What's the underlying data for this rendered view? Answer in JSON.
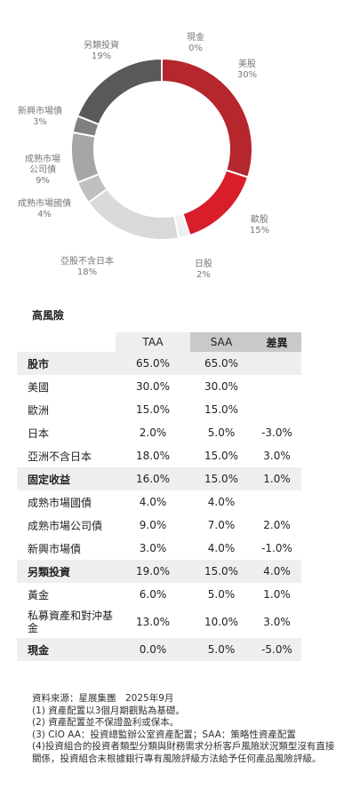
{
  "chart_data": {
    "type": "pie",
    "title": "",
    "slices": [
      {
        "label": "美股",
        "value": 30,
        "display": "30%",
        "color": "#b5272d"
      },
      {
        "label": "歐股",
        "value": 15,
        "display": "15%",
        "color": "#d71e29"
      },
      {
        "label": "日股",
        "value": 2,
        "display": "2%",
        "color": "#f0f0f0"
      },
      {
        "label": "亞股不含日本",
        "value": 18,
        "display": "18%",
        "color": "#d9d9d9"
      },
      {
        "label": "成熟市場國債",
        "value": 4,
        "display": "4%",
        "color": "#bfbfbf"
      },
      {
        "label": "成熟市場公司債",
        "value": 9,
        "display": "9%",
        "color": "#a6a6a6"
      },
      {
        "label": "新興市場債",
        "value": 3,
        "display": "3%",
        "color": "#808080"
      },
      {
        "label": "另類投資",
        "value": 19,
        "display": "19%",
        "color": "#595959"
      },
      {
        "label": "現金",
        "value": 0,
        "display": "0%",
        "color": "#404040"
      }
    ],
    "display_labels": [
      {
        "label": "現金",
        "lines": [
          "現金"
        ],
        "value": "0%"
      },
      {
        "label": "美股",
        "lines": [
          "美股"
        ],
        "value": "30%"
      },
      {
        "label": "歐股",
        "lines": [
          "歐股"
        ],
        "value": "15%"
      },
      {
        "label": "日股",
        "lines": [
          "日股"
        ],
        "value": "2%"
      },
      {
        "label": "亞股不含日本",
        "lines": [
          "亞股不含日本"
        ],
        "value": "18%"
      },
      {
        "label": "成熟市場國債",
        "lines": [
          "成熟市場國債"
        ],
        "value": "4%"
      },
      {
        "label": "成熟市場公司債",
        "lines": [
          "成熟市場",
          "公司債"
        ],
        "value": "9%"
      },
      {
        "label": "新興市場債",
        "lines": [
          "新興市場債"
        ],
        "value": "3%"
      },
      {
        "label": "另類投資",
        "lines": [
          "另類投資"
        ],
        "value": "19%"
      }
    ]
  },
  "section_title": "高風險",
  "table": {
    "headers": {
      "taa": "TAA",
      "saa": "SAA",
      "diff": "差異"
    },
    "rows": [
      {
        "label": "股市",
        "taa": "65.0%",
        "saa": "65.0%",
        "diff": "",
        "major": true
      },
      {
        "label": "美國",
        "taa": "30.0%",
        "saa": "30.0%",
        "diff": ""
      },
      {
        "label": "歐洲",
        "taa": "15.0%",
        "saa": "15.0%",
        "diff": ""
      },
      {
        "label": "日本",
        "taa": "2.0%",
        "saa": "5.0%",
        "diff": "-3.0%"
      },
      {
        "label": "亞洲不含日本",
        "taa": "18.0%",
        "saa": "15.0%",
        "diff": "3.0%"
      },
      {
        "label": "固定收益",
        "taa": "16.0%",
        "saa": "15.0%",
        "diff": "1.0%",
        "major": true
      },
      {
        "label": "成熟市場國債",
        "taa": "4.0%",
        "saa": "4.0%",
        "diff": ""
      },
      {
        "label": "成熟市場公司債",
        "taa": "9.0%",
        "saa": "7.0%",
        "diff": "2.0%"
      },
      {
        "label": "新興市場債",
        "taa": "3.0%",
        "saa": "4.0%",
        "diff": "-1.0%"
      },
      {
        "label": "另類投資",
        "taa": "19.0%",
        "saa": "15.0%",
        "diff": "4.0%",
        "major": true
      },
      {
        "label": "黃金",
        "taa": "6.0%",
        "saa": "5.0%",
        "diff": "1.0%"
      },
      {
        "label": "私募資產和對沖基金",
        "taa": "13.0%",
        "saa": "10.0%",
        "diff": "3.0%",
        "tall": true
      },
      {
        "label": "現金",
        "taa": "0.0%",
        "saa": "5.0%",
        "diff": "-5.0%",
        "major": true
      }
    ]
  },
  "notes": [
    "資料來源：星展集團　2025年9月",
    "(1) 資產配置以3個月期觀點為基礎。",
    "(2) 資產配置並不保證盈利或保本。",
    "(3) CIO AA：投資總監辦公室資產配置；SAA：策略性資產配置",
    "(4)投資組合的投資者類型分類與財務需求分析客戶風險狀況類型沒有直接關係，投資組合未根據銀行專有風險評級方法給予任何產品風險評級。"
  ]
}
